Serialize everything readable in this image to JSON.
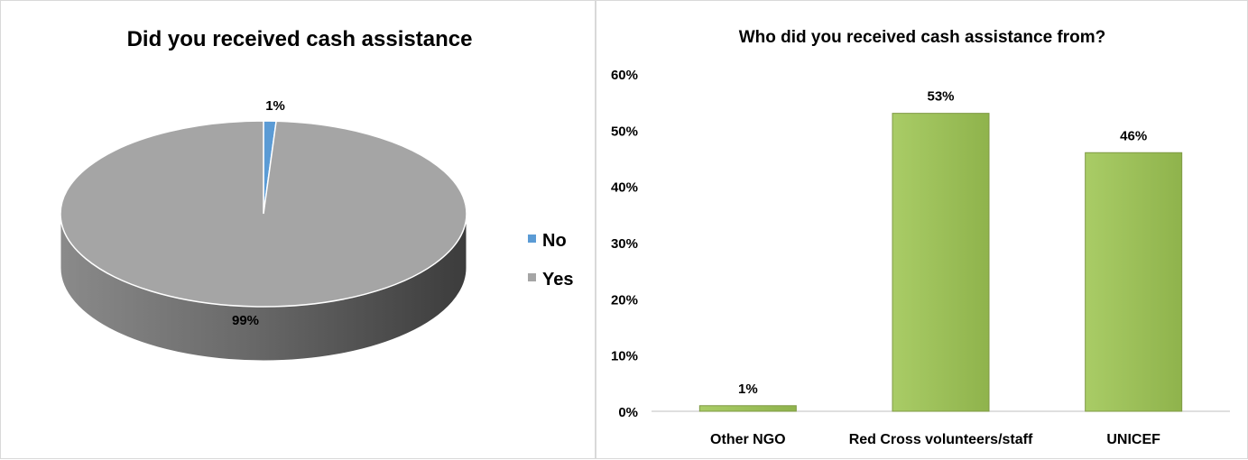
{
  "chart_data": [
    {
      "type": "pie",
      "title": "Did you received cash assistance",
      "categories": [
        "No",
        "Yes"
      ],
      "values": [
        1,
        99
      ],
      "labels": [
        "1%",
        "99%"
      ],
      "colors": [
        "#5b9bd5",
        "#a5a5a5"
      ],
      "legend": [
        "No",
        "Yes"
      ],
      "legend_position": "right",
      "three_d": true
    },
    {
      "type": "bar",
      "title": "Who did you received cash assistance from?",
      "categories": [
        "Other NGO",
        "Red Cross volunteers/staff",
        "UNICEF"
      ],
      "values": [
        1,
        53,
        46
      ],
      "labels": [
        "1%",
        "53%",
        "46%"
      ],
      "ylim": [
        0,
        60
      ],
      "yticks": [
        "0%",
        "10%",
        "20%",
        "30%",
        "40%",
        "50%",
        "60%"
      ],
      "xlabel": "",
      "ylabel": "",
      "grid": false,
      "bar_color": "#9bbb59"
    }
  ]
}
